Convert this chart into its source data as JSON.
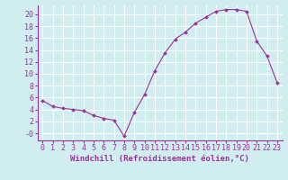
{
  "hours": [
    0,
    1,
    2,
    3,
    4,
    5,
    6,
    7,
    8,
    9,
    10,
    11,
    12,
    13,
    14,
    15,
    16,
    17,
    18,
    19,
    20,
    21,
    22,
    23
  ],
  "values": [
    5.5,
    4.5,
    4.2,
    4.0,
    3.8,
    3.0,
    2.5,
    2.2,
    -0.5,
    3.5,
    6.5,
    10.5,
    13.5,
    15.8,
    17.0,
    18.5,
    19.5,
    20.5,
    20.8,
    20.8,
    20.5,
    15.5,
    13.0,
    8.5
  ],
  "line_color": "#993399",
  "marker": "D",
  "marker_size": 2.0,
  "bg_color": "#d0eef0",
  "grid_color": "#aadddd",
  "xlabel": "Windchill (Refroidissement éolien,°C)",
  "xlim": [
    -0.5,
    23.5
  ],
  "ylim": [
    -1.2,
    21.5
  ],
  "yticks": [
    0,
    2,
    4,
    6,
    8,
    10,
    12,
    14,
    16,
    18,
    20
  ],
  "ytick_labels": [
    "-0",
    "2",
    "4",
    "6",
    "8",
    "10",
    "12",
    "14",
    "16",
    "18",
    "20"
  ],
  "xticks": [
    0,
    1,
    2,
    3,
    4,
    5,
    6,
    7,
    8,
    9,
    10,
    11,
    12,
    13,
    14,
    15,
    16,
    17,
    18,
    19,
    20,
    21,
    22,
    23
  ],
  "font_color": "#993399",
  "font_size": 6,
  "label_font_size": 6.5
}
